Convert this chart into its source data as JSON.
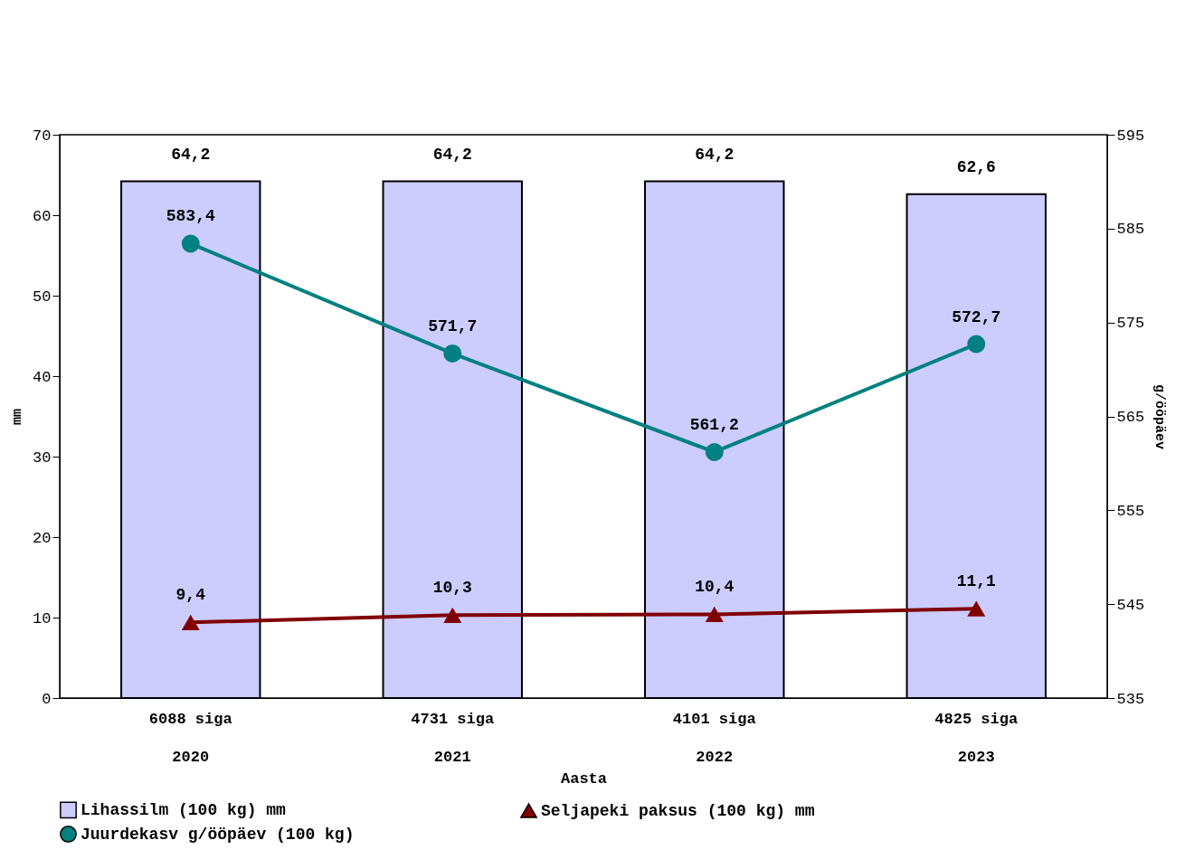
{
  "chart_data": {
    "type": "bar",
    "categories": [
      "6088 siga\n2020",
      "4731 siga\n2021",
      "4101 siga\n2022",
      "4825 siga\n2023"
    ],
    "xlabel": "Aasta",
    "ylabel": "mm",
    "y2label": "g/ööpäev",
    "ylim": [
      0,
      70
    ],
    "yticks": [
      0,
      10,
      20,
      30,
      40,
      50,
      60,
      70
    ],
    "y2lim": [
      535,
      595
    ],
    "y2ticks": [
      535,
      545,
      555,
      565,
      575,
      585,
      595
    ],
    "legend": "bottom",
    "grid": false,
    "series": [
      {
        "name": "Lihassilm (100 kg) mm",
        "color": "#ccccff",
        "values": [
          64.2,
          64.2,
          64.2,
          62.6
        ],
        "value_labels": [
          "64,2",
          "64,2",
          "64,2",
          "62,6"
        ]
      },
      {
        "name": "Seljapeki paksus (100 kg) mm",
        "type": "line",
        "marker": "triangle",
        "color": "#800000",
        "values": [
          9.4,
          10.3,
          10.4,
          11.1
        ],
        "value_labels": [
          "9,4",
          "10,3",
          "10,4",
          "11,1"
        ]
      },
      {
        "name": "Juurdekasv g/ööpäev (100 kg)",
        "type": "line",
        "marker": "circle",
        "axis": "y2",
        "color": "#008080",
        "values": [
          583.4,
          571.7,
          561.2,
          572.7
        ],
        "value_labels": [
          "583,4",
          "571,7",
          "561,2",
          "572,7"
        ]
      }
    ]
  }
}
